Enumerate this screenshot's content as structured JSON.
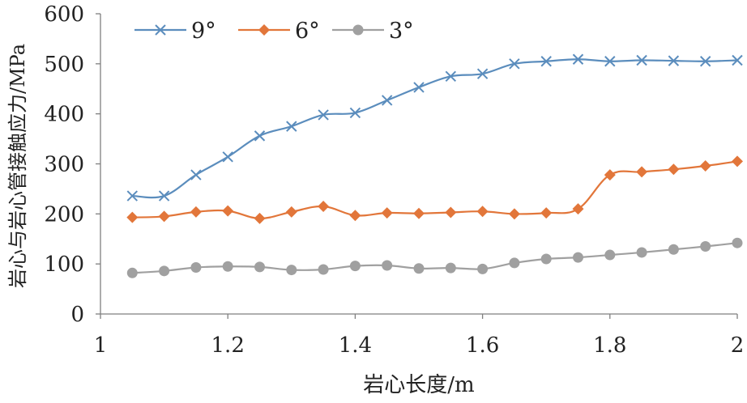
{
  "chart_data": {
    "type": "line",
    "title": "",
    "xlabel": "岩心长度/m",
    "ylabel": "岩心与岩心管接触应力/MPa",
    "xlim": [
      1,
      2
    ],
    "ylim": [
      0,
      600
    ],
    "x_ticks": [
      "1",
      "1.2",
      "1.4",
      "1.6",
      "1.8",
      "2"
    ],
    "y_ticks": [
      "0",
      "100",
      "200",
      "300",
      "400",
      "500",
      "600"
    ],
    "x_tick_values": [
      1,
      1.2,
      1.4,
      1.6,
      1.8,
      2
    ],
    "y_tick_values": [
      0,
      100,
      200,
      300,
      400,
      500,
      600
    ],
    "grid": false,
    "legend_position": "top-left",
    "x": [
      1.05,
      1.1,
      1.15,
      1.2,
      1.25,
      1.3,
      1.35,
      1.4,
      1.45,
      1.5,
      1.55,
      1.6,
      1.65,
      1.7,
      1.75,
      1.8,
      1.85,
      1.9,
      1.95,
      2.0
    ],
    "series": [
      {
        "name": "9°",
        "color": "#5B8DBD",
        "marker": "x",
        "values": [
          236,
          236,
          278,
          314,
          356,
          375,
          398,
          402,
          427,
          453,
          475,
          480,
          500,
          505,
          509,
          505,
          507,
          506,
          505,
          507
        ]
      },
      {
        "name": "6°",
        "color": "#E2763A",
        "marker": "diamond",
        "values": [
          193,
          195,
          204,
          206,
          191,
          204,
          215,
          197,
          202,
          201,
          203,
          205,
          200,
          202,
          210,
          278,
          284,
          289,
          296,
          305
        ]
      },
      {
        "name": "3°",
        "color": "#A0A0A0",
        "marker": "circle",
        "values": [
          82,
          86,
          93,
          95,
          94,
          88,
          89,
          96,
          97,
          91,
          92,
          90,
          102,
          110,
          113,
          118,
          123,
          129,
          135,
          142
        ]
      }
    ]
  }
}
